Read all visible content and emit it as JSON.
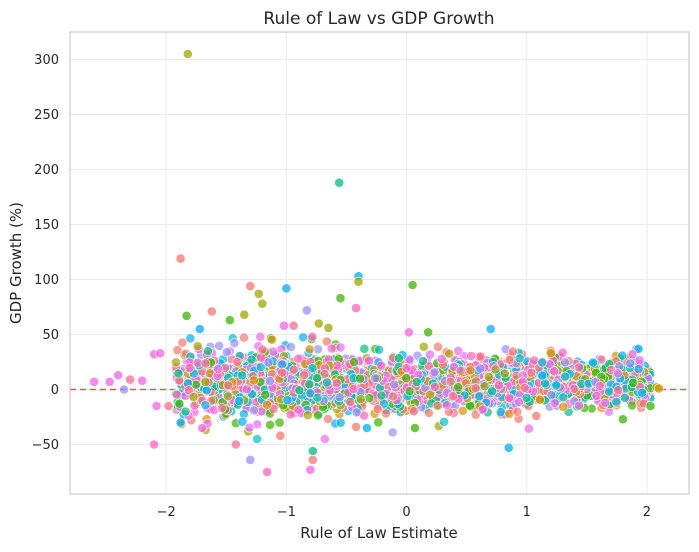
{
  "chart_data": {
    "type": "scatter",
    "title": "Rule of Law vs GDP Growth",
    "xlabel": "Rule of Law Estimate",
    "ylabel": "GDP Growth (%)",
    "xlim": [
      -2.8,
      2.35
    ],
    "ylim": [
      -95,
      325
    ],
    "xticks": [
      -2,
      -1,
      0,
      1,
      2
    ],
    "xtick_labels": [
      "−2",
      "−1",
      "0",
      "1",
      "2"
    ],
    "yticks": [
      -50,
      0,
      50,
      100,
      150,
      200,
      250,
      300
    ],
    "ytick_labels": [
      "−50",
      "0",
      "50",
      "100",
      "150",
      "200",
      "250",
      "300"
    ],
    "grid": true,
    "reference_line": {
      "y": 0,
      "style": "dashed",
      "color": "#e05a5a"
    },
    "point_colors": [
      "#f564e3",
      "#f8766d",
      "#e76bf3",
      "#00b0f6",
      "#00bf7d",
      "#39b600",
      "#a3a500",
      "#d89000",
      "#9590ff",
      "#ff62bc",
      "#00bfc4",
      "#ff6c91"
    ],
    "point_alpha": 0.7,
    "outliers": [
      [
        -1.82,
        305,
        "#a3a500"
      ],
      [
        -0.56,
        188,
        "#00bf7d"
      ],
      [
        -1.88,
        119,
        "#f8766d"
      ],
      [
        -0.4,
        103,
        "#00b0f6"
      ],
      [
        -0.4,
        98,
        "#a3a500"
      ],
      [
        0.05,
        95,
        "#39b600"
      ],
      [
        -1.3,
        94,
        "#f8766d"
      ],
      [
        -1.0,
        92,
        "#00b0f6"
      ],
      [
        -1.23,
        87,
        "#a3a500"
      ],
      [
        -0.55,
        83,
        "#39b600"
      ],
      [
        -1.2,
        78,
        "#a3a500"
      ],
      [
        -0.42,
        74,
        "#ff62bc"
      ],
      [
        -0.83,
        72,
        "#9590ff"
      ],
      [
        -1.62,
        71,
        "#f8766d"
      ],
      [
        -1.83,
        67,
        "#39b600"
      ],
      [
        -1.35,
        68,
        "#a3a500"
      ],
      [
        -1.47,
        63,
        "#39b600"
      ],
      [
        -0.73,
        60,
        "#a3a500"
      ],
      [
        -1.02,
        58,
        "#f564e3"
      ],
      [
        -0.94,
        58,
        "#ff6c91"
      ],
      [
        -0.65,
        56,
        "#a3a500"
      ],
      [
        0.7,
        55,
        "#00b0f6"
      ],
      [
        -1.72,
        55,
        "#00b0f6"
      ],
      [
        0.18,
        52,
        "#39b600"
      ],
      [
        0.02,
        52,
        "#f564e3"
      ],
      [
        -2.1,
        32,
        "#f564e3"
      ],
      [
        -2.05,
        33,
        "#f564e3"
      ],
      [
        -2.6,
        7,
        "#f564e3"
      ],
      [
        -2.47,
        7,
        "#f564e3"
      ],
      [
        -2.4,
        13,
        "#f564e3"
      ],
      [
        -2.3,
        9,
        "#ff6c91"
      ],
      [
        -2.2,
        8,
        "#f564e3"
      ],
      [
        -2.35,
        0,
        "#9590ff"
      ],
      [
        -2.08,
        -15,
        "#f564e3"
      ],
      [
        -1.98,
        -15,
        "#ff6c91"
      ],
      [
        -2.1,
        -50,
        "#ff62bc"
      ],
      [
        -1.88,
        -30,
        "#00b0f6"
      ],
      [
        -1.7,
        -35,
        "#f564e3"
      ],
      [
        -1.42,
        -50,
        "#ff6c91"
      ],
      [
        -1.3,
        -64,
        "#9590ff"
      ],
      [
        -1.16,
        -75,
        "#ff62bc"
      ],
      [
        -0.78,
        -56,
        "#00bf7d"
      ],
      [
        -0.78,
        -64,
        "#f8766d"
      ],
      [
        -0.8,
        -73,
        "#f564e3"
      ],
      [
        -1.05,
        -42,
        "#f8766d"
      ],
      [
        -0.33,
        -35,
        "#00b0f6"
      ],
      [
        -0.42,
        -34,
        "#f8766d"
      ],
      [
        0.85,
        -53,
        "#00b0f6"
      ],
      [
        0.07,
        -35,
        "#39b600"
      ],
      [
        1.08,
        -24,
        "#f8766d"
      ],
      [
        1.8,
        -27,
        "#39b600"
      ],
      [
        2.03,
        -15,
        "#39b600"
      ],
      [
        2.08,
        2,
        "#a3a500"
      ],
      [
        2.1,
        1,
        "#d89000"
      ],
      [
        1.93,
        37,
        "#00b0f6"
      ],
      [
        1.88,
        32,
        "#f564e3"
      ],
      [
        1.2,
        33,
        "#d89000"
      ]
    ]
  }
}
